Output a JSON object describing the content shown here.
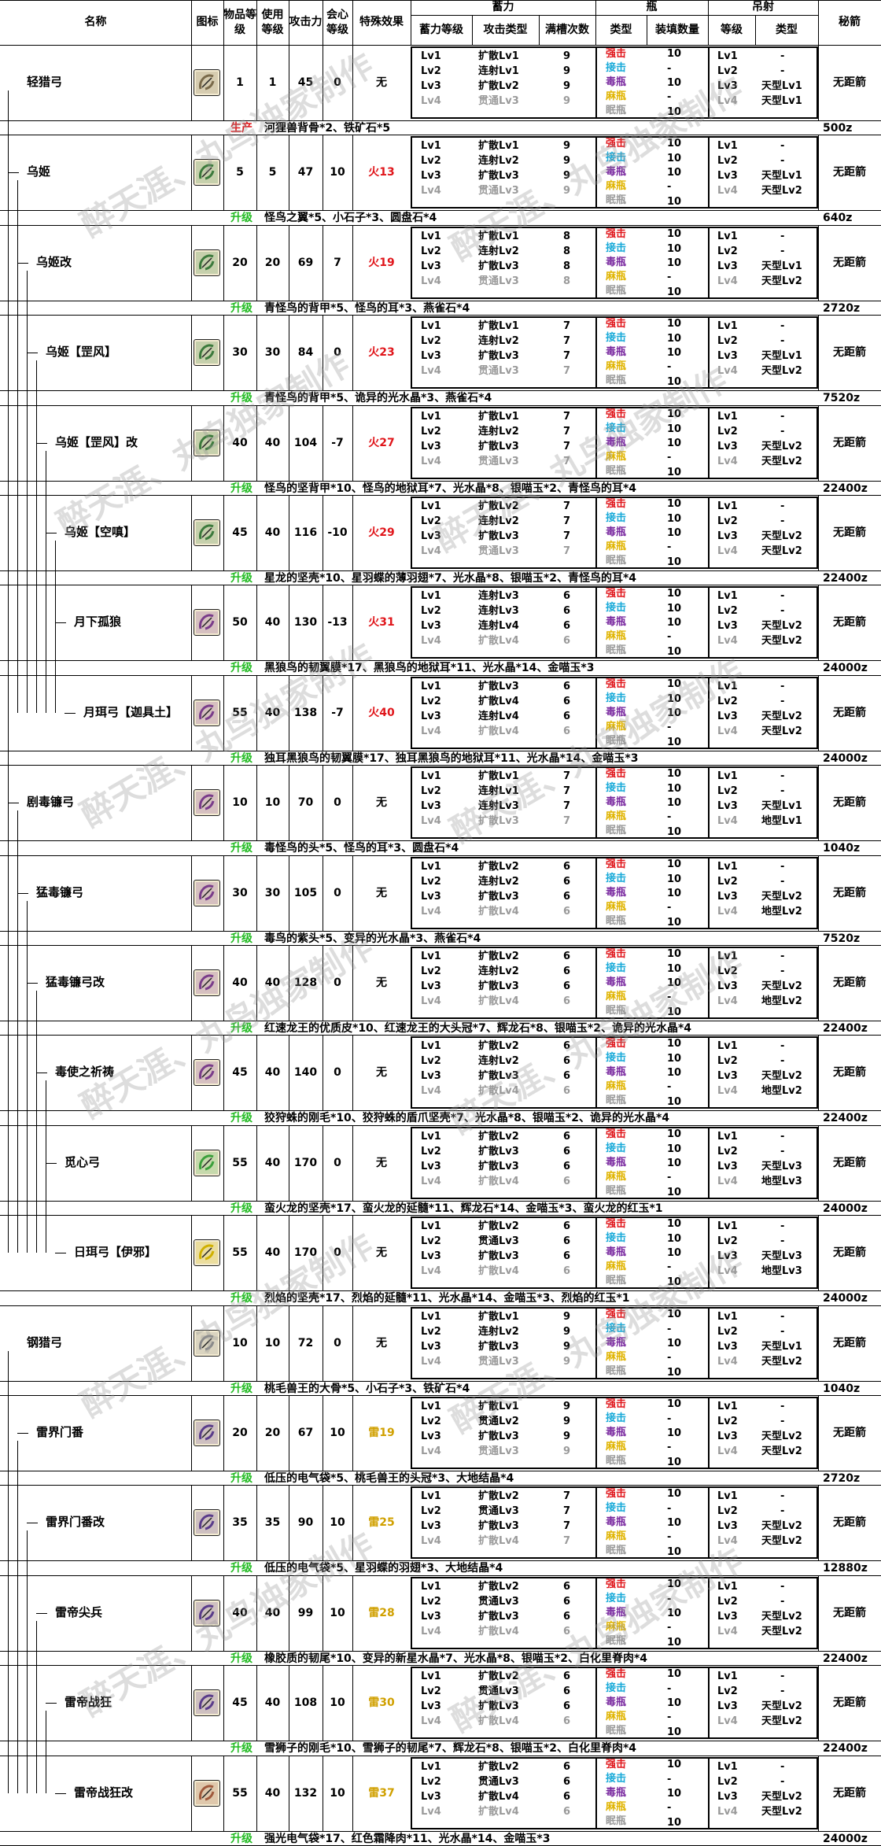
{
  "headers": {
    "name": "名称",
    "icon": "图标",
    "rarity": "物品等级",
    "use_level": "使用等级",
    "attack": "攻击力",
    "affinity": "会心等级",
    "special": "特殊效果",
    "charge_group": "蓄力",
    "charge_level": "蓄力等级",
    "attack_type": "攻击类型",
    "slot_times": "满槽次数",
    "bottle_group": "瓶",
    "bottle_type": "类型",
    "bottle_count": "装填数量",
    "arc_group": "吊射",
    "arc_level": "等级",
    "arc_type": "类型",
    "note": "秘箭"
  },
  "coatings": [
    "强击",
    "接击",
    "毒瓶",
    "麻瓶",
    "眠瓶"
  ],
  "coating_colors": [
    "#e0161b",
    "#16a9d8",
    "#7a2aa0",
    "#e0b400",
    "#999999"
  ],
  "levels": [
    "Lv1",
    "Lv2",
    "Lv3",
    "Lv4"
  ],
  "watermark": "醉天涯、丸鸟独家制作",
  "weapons": [
    {
      "name": "轻猎弓",
      "icon_color": "#7a6a4a",
      "rarity": "1",
      "use": "1",
      "atk": "45",
      "aff": "0",
      "fx": "无",
      "fx_color": "#000000",
      "charge": [
        [
          "扩散Lv1",
          "9"
        ],
        [
          "连射Lv1",
          "9"
        ],
        [
          "扩散Lv2",
          "9"
        ],
        [
          "贯通Lv3",
          "9"
        ]
      ],
      "bottles": [
        "10",
        "-",
        "10",
        "-",
        "10"
      ],
      "arc": [
        "-",
        "-",
        "天型Lv1",
        "天型Lv1"
      ],
      "note": "无距箭",
      "tag": "生产",
      "mat": "河狸兽背骨*2、铁矿石*5",
      "cost": "500z"
    },
    {
      "name": "乌姬",
      "icon_color": "#3c7a3c",
      "rarity": "5",
      "use": "5",
      "atk": "47",
      "aff": "10",
      "fx": "火13",
      "fx_color": "#e0161b",
      "charge": [
        [
          "扩散Lv1",
          "9"
        ],
        [
          "连射Lv2",
          "9"
        ],
        [
          "扩散Lv3",
          "9"
        ],
        [
          "贯通Lv3",
          "9"
        ]
      ],
      "bottles": [
        "10",
        "10",
        "10",
        "-",
        "10"
      ],
      "arc": [
        "-",
        "-",
        "天型Lv1",
        "天型Lv2"
      ],
      "note": "无距箭",
      "tag": "升级",
      "mat": "怪鸟之翼*5、小石子*3、圆盘石*4",
      "cost": "640z"
    },
    {
      "name": "乌姬改",
      "icon_color": "#3c7a3c",
      "rarity": "20",
      "use": "20",
      "atk": "69",
      "aff": "7",
      "fx": "火19",
      "fx_color": "#e0161b",
      "charge": [
        [
          "扩散Lv1",
          "8"
        ],
        [
          "连射Lv2",
          "8"
        ],
        [
          "扩散Lv3",
          "8"
        ],
        [
          "贯通Lv3",
          "8"
        ]
      ],
      "bottles": [
        "10",
        "10",
        "10",
        "-",
        "10"
      ],
      "arc": [
        "-",
        "-",
        "天型Lv1",
        "天型Lv2"
      ],
      "note": "无距箭",
      "tag": "升级",
      "mat": "青怪鸟的背甲*5、怪鸟的耳*3、燕雀石*4",
      "cost": "2720z"
    },
    {
      "name": "乌姬【罡风】",
      "icon_color": "#3c7a3c",
      "rarity": "30",
      "use": "30",
      "atk": "84",
      "aff": "0",
      "fx": "火23",
      "fx_color": "#e0161b",
      "charge": [
        [
          "扩散Lv1",
          "7"
        ],
        [
          "连射Lv2",
          "7"
        ],
        [
          "扩散Lv3",
          "7"
        ],
        [
          "贯通Lv3",
          "7"
        ]
      ],
      "bottles": [
        "10",
        "10",
        "10",
        "-",
        "10"
      ],
      "arc": [
        "-",
        "-",
        "天型Lv1",
        "天型Lv2"
      ],
      "note": "无距箭",
      "tag": "升级",
      "mat": "青怪鸟的背甲*5、诡异的光水晶*3、燕雀石*4",
      "cost": "7520z"
    },
    {
      "name": "乌姬【罡风】改",
      "icon_color": "#3c7a3c",
      "rarity": "40",
      "use": "40",
      "atk": "104",
      "aff": "-7",
      "fx": "火27",
      "fx_color": "#e0161b",
      "charge": [
        [
          "扩散Lv1",
          "7"
        ],
        [
          "连射Lv2",
          "7"
        ],
        [
          "扩散Lv3",
          "7"
        ],
        [
          "贯通Lv3",
          "7"
        ]
      ],
      "bottles": [
        "10",
        "10",
        "10",
        "-",
        "10"
      ],
      "arc": [
        "-",
        "-",
        "天型Lv2",
        "天型Lv2"
      ],
      "note": "无距箭",
      "tag": "升级",
      "mat": "怪鸟的坚背甲*10、怪鸟的地狱耳*7、光水晶*8、银喵玉*2、青怪鸟的耳*4",
      "cost": "22400z"
    },
    {
      "name": "乌姬【空嗔】",
      "icon_color": "#3c7a3c",
      "rarity": "45",
      "use": "40",
      "atk": "116",
      "aff": "-10",
      "fx": "火29",
      "fx_color": "#e0161b",
      "charge": [
        [
          "扩散Lv2",
          "7"
        ],
        [
          "连射Lv2",
          "7"
        ],
        [
          "扩散Lv3",
          "7"
        ],
        [
          "贯通Lv3",
          "7"
        ]
      ],
      "bottles": [
        "10",
        "10",
        "10",
        "-",
        "10"
      ],
      "arc": [
        "-",
        "-",
        "天型Lv2",
        "天型Lv2"
      ],
      "note": "无距箭",
      "tag": "升级",
      "mat": "星龙的坚壳*10、星羽蝶的薄羽翅*7、光水晶*8、银喵玉*2、青怪鸟的耳*4",
      "cost": "22400z"
    },
    {
      "name": "月下孤狼",
      "icon_color": "#7a3c8a",
      "rarity": "50",
      "use": "40",
      "atk": "130",
      "aff": "-13",
      "fx": "火31",
      "fx_color": "#e0161b",
      "charge": [
        [
          "连射Lv3",
          "6"
        ],
        [
          "连射Lv3",
          "6"
        ],
        [
          "连射Lv4",
          "6"
        ],
        [
          "扩散Lv4",
          "6"
        ]
      ],
      "bottles": [
        "10",
        "10",
        "10",
        "-",
        "10"
      ],
      "arc": [
        "-",
        "-",
        "天型Lv2",
        "天型Lv2"
      ],
      "note": "无距箭",
      "tag": "升级",
      "mat": "黑狼鸟的韧翼膜*17、黑狼鸟的地狱耳*11、光水晶*14、金喵玉*3",
      "cost": "24000z"
    },
    {
      "name": "月珥弓【迦具土】",
      "icon_color": "#7a3c8a",
      "rarity": "55",
      "use": "40",
      "atk": "138",
      "aff": "-7",
      "fx": "火40",
      "fx_color": "#e0161b",
      "charge": [
        [
          "扩散Lv3",
          "6"
        ],
        [
          "扩散Lv4",
          "6"
        ],
        [
          "连射Lv4",
          "6"
        ],
        [
          "扩散Lv4",
          "6"
        ]
      ],
      "bottles": [
        "10",
        "10",
        "10",
        "-",
        "10"
      ],
      "arc": [
        "-",
        "-",
        "天型Lv2",
        "天型Lv2"
      ],
      "note": "无距箭",
      "tag": "升级",
      "mat": "独耳黑狼鸟的韧翼膜*17、独耳黑狼鸟的地狱耳*11、光水晶*14、金喵玉*3",
      "cost": "24000z"
    },
    {
      "name": "剧毒镰弓",
      "icon_color": "#7a3c8a",
      "rarity": "10",
      "use": "10",
      "atk": "70",
      "aff": "0",
      "fx": "无",
      "fx_color": "#000000",
      "charge": [
        [
          "扩散Lv1",
          "7"
        ],
        [
          "连射Lv1",
          "7"
        ],
        [
          "连射Lv3",
          "7"
        ],
        [
          "扩散Lv3",
          "7"
        ]
      ],
      "bottles": [
        "10",
        "10",
        "10",
        "-",
        "10"
      ],
      "arc": [
        "-",
        "-",
        "天型Lv1",
        "地型Lv1"
      ],
      "note": "无距箭",
      "tag": "升级",
      "mat": "毒怪鸟的头*5、怪鸟的耳*3、圆盘石*4",
      "cost": "1040z"
    },
    {
      "name": "猛毒镰弓",
      "icon_color": "#7a3c8a",
      "rarity": "30",
      "use": "30",
      "atk": "105",
      "aff": "0",
      "fx": "无",
      "fx_color": "#000000",
      "charge": [
        [
          "扩散Lv2",
          "6"
        ],
        [
          "连射Lv2",
          "6"
        ],
        [
          "扩散Lv3",
          "6"
        ],
        [
          "扩散Lv4",
          "6"
        ]
      ],
      "bottles": [
        "10",
        "10",
        "10",
        "-",
        "10"
      ],
      "arc": [
        "-",
        "-",
        "天型Lv2",
        "地型Lv2"
      ],
      "note": "无距箭",
      "tag": "升级",
      "mat": "毒鸟的紫头*5、变异的光水晶*3、燕雀石*4",
      "cost": "7520z"
    },
    {
      "name": "猛毒镰弓改",
      "icon_color": "#7a3c8a",
      "rarity": "40",
      "use": "40",
      "atk": "128",
      "aff": "0",
      "fx": "无",
      "fx_color": "#000000",
      "charge": [
        [
          "扩散Lv2",
          "6"
        ],
        [
          "连射Lv2",
          "6"
        ],
        [
          "扩散Lv3",
          "6"
        ],
        [
          "扩散Lv4",
          "6"
        ]
      ],
      "bottles": [
        "10",
        "10",
        "10",
        "-",
        "10"
      ],
      "arc": [
        "-",
        "-",
        "天型Lv2",
        "地型Lv2"
      ],
      "note": "无距箭",
      "tag": "升级",
      "mat": "红速龙王的优质皮*10、红速龙王的大头冠*7、辉龙石*8、银喵玉*2、诡异的光水晶*4",
      "cost": "22400z"
    },
    {
      "name": "毒使之祈祷",
      "icon_color": "#7a3c8a",
      "rarity": "45",
      "use": "40",
      "atk": "140",
      "aff": "0",
      "fx": "无",
      "fx_color": "#000000",
      "charge": [
        [
          "扩散Lv2",
          "6"
        ],
        [
          "连射Lv2",
          "6"
        ],
        [
          "扩散Lv3",
          "6"
        ],
        [
          "扩散Lv4",
          "6"
        ]
      ],
      "bottles": [
        "10",
        "10",
        "10",
        "-",
        "10"
      ],
      "arc": [
        "-",
        "-",
        "天型Lv2",
        "地型Lv2"
      ],
      "note": "无距箭",
      "tag": "升级",
      "mat": "狡狩蛛的刚毛*10、狡狩蛛的盾爪坚壳*7、光水晶*8、银喵玉*2、诡异的光水晶*4",
      "cost": "22400z"
    },
    {
      "name": "觅心弓",
      "icon_color": "#3ca03c",
      "rarity": "55",
      "use": "40",
      "atk": "170",
      "aff": "0",
      "fx": "无",
      "fx_color": "#000000",
      "charge": [
        [
          "扩散Lv2",
          "6"
        ],
        [
          "扩散Lv3",
          "6"
        ],
        [
          "扩散Lv3",
          "6"
        ],
        [
          "扩散Lv4",
          "6"
        ]
      ],
      "bottles": [
        "10",
        "10",
        "10",
        "-",
        "10"
      ],
      "arc": [
        "-",
        "-",
        "天型Lv3",
        "地型Lv3"
      ],
      "note": "无距箭",
      "tag": "升级",
      "mat": "蛮火龙的坚壳*17、蛮火龙的延髓*11、辉龙石*14、金喵玉*3、蛮火龙的红玉*1",
      "cost": "24000z"
    },
    {
      "name": "日珥弓【伊邪】",
      "icon_color": "#d0b000",
      "rarity": "55",
      "use": "40",
      "atk": "170",
      "aff": "0",
      "fx": "无",
      "fx_color": "#000000",
      "charge": [
        [
          "扩散Lv2",
          "6"
        ],
        [
          "贯通Lv3",
          "6"
        ],
        [
          "扩散Lv3",
          "6"
        ],
        [
          "扩散Lv4",
          "6"
        ]
      ],
      "bottles": [
        "10",
        "10",
        "10",
        "-",
        "10"
      ],
      "arc": [
        "-",
        "-",
        "天型Lv3",
        "地型Lv3"
      ],
      "note": "无距箭",
      "tag": "升级",
      "mat": "烈焰的坚壳*17、烈焰的延髓*11、光水晶*14、金喵玉*3、烈焰的红玉*1",
      "cost": "24000z"
    },
    {
      "name": "钢猎弓",
      "icon_color": "#8a8a8a",
      "rarity": "10",
      "use": "10",
      "atk": "72",
      "aff": "0",
      "fx": "无",
      "fx_color": "#000000",
      "charge": [
        [
          "扩散Lv1",
          "9"
        ],
        [
          "连射Lv2",
          "9"
        ],
        [
          "扩散Lv3",
          "9"
        ],
        [
          "贯通Lv3",
          "9"
        ]
      ],
      "bottles": [
        "10",
        "-",
        "10",
        "-",
        "10"
      ],
      "arc": [
        "-",
        "-",
        "天型Lv1",
        "天型Lv2"
      ],
      "note": "无距箭",
      "tag": "升级",
      "mat": "桃毛兽王的大骨*5、小石子*3、铁矿石*4",
      "cost": "1040z"
    },
    {
      "name": "雷界门番",
      "icon_color": "#5a3c8a",
      "rarity": "20",
      "use": "20",
      "atk": "67",
      "aff": "10",
      "fx": "雷19",
      "fx_color": "#d0a000",
      "charge": [
        [
          "扩散Lv1",
          "9"
        ],
        [
          "贯通Lv2",
          "9"
        ],
        [
          "扩散Lv3",
          "9"
        ],
        [
          "贯通Lv3",
          "9"
        ]
      ],
      "bottles": [
        "10",
        "-",
        "10",
        "-",
        "10"
      ],
      "arc": [
        "-",
        "-",
        "天型Lv2",
        "天型Lv2"
      ],
      "note": "无距箭",
      "tag": "升级",
      "mat": "低压的电气袋*5、桃毛兽王的头冠*3、大地结晶*4",
      "cost": "2720z"
    },
    {
      "name": "雷界门番改",
      "icon_color": "#5a3c8a",
      "rarity": "35",
      "use": "35",
      "atk": "90",
      "aff": "10",
      "fx": "雷25",
      "fx_color": "#d0a000",
      "charge": [
        [
          "扩散Lv2",
          "7"
        ],
        [
          "贯通Lv3",
          "7"
        ],
        [
          "扩散Lv3",
          "7"
        ],
        [
          "扩散Lv4",
          "7"
        ]
      ],
      "bottles": [
        "10",
        "-",
        "10",
        "-",
        "10"
      ],
      "arc": [
        "-",
        "-",
        "天型Lv2",
        "天型Lv2"
      ],
      "note": "无距箭",
      "tag": "升级",
      "mat": "低压的电气袋*5、星羽蝶的羽翅*3、大地结晶*4",
      "cost": "12880z"
    },
    {
      "name": "雷帝尖兵",
      "icon_color": "#5a3c8a",
      "rarity": "40",
      "use": "40",
      "atk": "99",
      "aff": "10",
      "fx": "雷28",
      "fx_color": "#d0a000",
      "charge": [
        [
          "扩散Lv2",
          "6"
        ],
        [
          "贯通Lv3",
          "6"
        ],
        [
          "扩散Lv3",
          "6"
        ],
        [
          "扩散Lv4",
          "6"
        ]
      ],
      "bottles": [
        "10",
        "-",
        "10",
        "-",
        "10"
      ],
      "arc": [
        "-",
        "-",
        "天型Lv2",
        "天型Lv2"
      ],
      "note": "无距箭",
      "tag": "升级",
      "mat": "橡胶质的韧尾*10、变异的新星水晶*7、光水晶*8、银喵玉*2、白化里脊肉*4",
      "cost": "22400z"
    },
    {
      "name": "雷帝战狂",
      "icon_color": "#5a3c8a",
      "rarity": "45",
      "use": "40",
      "atk": "108",
      "aff": "10",
      "fx": "雷30",
      "fx_color": "#d0a000",
      "charge": [
        [
          "扩散Lv2",
          "6"
        ],
        [
          "贯通Lv3",
          "6"
        ],
        [
          "扩散Lv3",
          "6"
        ],
        [
          "扩散Lv4",
          "6"
        ]
      ],
      "bottles": [
        "10",
        "-",
        "10",
        "-",
        "10"
      ],
      "arc": [
        "-",
        "-",
        "天型Lv2",
        "天型Lv2"
      ],
      "note": "无距箭",
      "tag": "升级",
      "mat": "雪狮子的刚毛*10、雪狮子的韧尾*7、辉龙石*8、银喵玉*2、白化里脊肉*4",
      "cost": "22400z"
    },
    {
      "name": "雷帝战狂改",
      "icon_color": "#a05a3c",
      "rarity": "55",
      "use": "40",
      "atk": "132",
      "aff": "10",
      "fx": "雷37",
      "fx_color": "#d0a000",
      "charge": [
        [
          "扩散Lv2",
          "6"
        ],
        [
          "贯通Lv3",
          "6"
        ],
        [
          "扩散Lv4",
          "6"
        ],
        [
          "扩散Lv4",
          "6"
        ]
      ],
      "bottles": [
        "10",
        "-",
        "10",
        "-",
        "10"
      ],
      "arc": [
        "-",
        "-",
        "天型Lv2",
        "天型Lv2"
      ],
      "note": "无距箭",
      "tag": "升级",
      "mat": "强光电气袋*17、红色霜降肉*11、光水晶*14、金喵玉*3",
      "cost": "24000z"
    }
  ]
}
